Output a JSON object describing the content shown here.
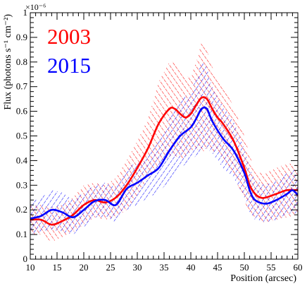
{
  "chart_data": {
    "type": "line",
    "title": "",
    "xlabel": "Position (arcsec)",
    "ylabel": "Flux (photons s⁻¹ cm⁻²)",
    "y_exponent_label": "×10⁻⁶",
    "xlim": [
      10,
      60
    ],
    "ylim": [
      0,
      1
    ],
    "y_scale_factor": 1e-06,
    "x_ticks": [
      10,
      15,
      20,
      25,
      30,
      35,
      40,
      45,
      50,
      55,
      60
    ],
    "y_ticks": [
      0,
      0.1,
      0.2,
      0.3,
      0.4,
      0.5,
      0.6,
      0.7,
      0.8,
      0.9,
      1
    ],
    "grid": false,
    "legend_position": "top-left",
    "series": [
      {
        "name": "2003",
        "color": "#ff0000",
        "x": [
          10,
          12,
          14,
          16,
          18,
          20,
          22,
          24,
          26,
          28,
          30,
          32,
          34,
          36,
          37,
          38,
          39,
          40,
          41,
          42,
          43,
          44,
          45,
          46,
          48,
          50,
          51,
          52,
          53,
          54,
          56,
          58,
          60
        ],
        "y": [
          0.16,
          0.16,
          0.14,
          0.155,
          0.18,
          0.22,
          0.24,
          0.23,
          0.25,
          0.3,
          0.37,
          0.45,
          0.55,
          0.61,
          0.61,
          0.59,
          0.575,
          0.59,
          0.625,
          0.655,
          0.65,
          0.61,
          0.575,
          0.55,
          0.48,
          0.37,
          0.3,
          0.265,
          0.25,
          0.25,
          0.265,
          0.28,
          0.28
        ],
        "upper": [
          0.22,
          0.22,
          0.21,
          0.22,
          0.25,
          0.3,
          0.31,
          0.3,
          0.33,
          0.4,
          0.48,
          0.57,
          0.72,
          0.8,
          0.8,
          0.77,
          0.74,
          0.74,
          0.8,
          0.88,
          0.85,
          0.78,
          0.72,
          0.7,
          0.62,
          0.5,
          0.42,
          0.36,
          0.35,
          0.35,
          0.37,
          0.39,
          0.38
        ],
        "lower": [
          0.1,
          0.1,
          0.07,
          0.09,
          0.11,
          0.14,
          0.17,
          0.16,
          0.17,
          0.2,
          0.26,
          0.33,
          0.38,
          0.42,
          0.42,
          0.41,
          0.41,
          0.44,
          0.45,
          0.43,
          0.45,
          0.44,
          0.43,
          0.4,
          0.34,
          0.24,
          0.18,
          0.17,
          0.15,
          0.15,
          0.16,
          0.17,
          0.18
        ]
      },
      {
        "name": "2015",
        "color": "#0000ff",
        "x": [
          10,
          12,
          14,
          16,
          18,
          20,
          22,
          24,
          26,
          28,
          30,
          32,
          34,
          36,
          38,
          40,
          41,
          42,
          43,
          44,
          46,
          48,
          50,
          51,
          52,
          54,
          56,
          58,
          59,
          60
        ],
        "y": [
          0.165,
          0.175,
          0.2,
          0.19,
          0.17,
          0.2,
          0.235,
          0.24,
          0.22,
          0.285,
          0.31,
          0.34,
          0.37,
          0.44,
          0.5,
          0.535,
          0.57,
          0.61,
          0.61,
          0.56,
          0.49,
          0.44,
          0.35,
          0.28,
          0.24,
          0.225,
          0.24,
          0.265,
          0.28,
          0.26
        ],
        "upper": [
          0.23,
          0.25,
          0.28,
          0.27,
          0.24,
          0.27,
          0.3,
          0.31,
          0.29,
          0.36,
          0.4,
          0.43,
          0.48,
          0.57,
          0.64,
          0.68,
          0.73,
          0.8,
          0.78,
          0.7,
          0.62,
          0.56,
          0.45,
          0.37,
          0.32,
          0.3,
          0.32,
          0.35,
          0.37,
          0.34
        ],
        "lower": [
          0.1,
          0.11,
          0.12,
          0.11,
          0.1,
          0.13,
          0.17,
          0.17,
          0.15,
          0.2,
          0.22,
          0.25,
          0.27,
          0.32,
          0.37,
          0.4,
          0.42,
          0.44,
          0.45,
          0.43,
          0.37,
          0.33,
          0.25,
          0.19,
          0.16,
          0.15,
          0.16,
          0.18,
          0.19,
          0.18
        ]
      }
    ]
  }
}
